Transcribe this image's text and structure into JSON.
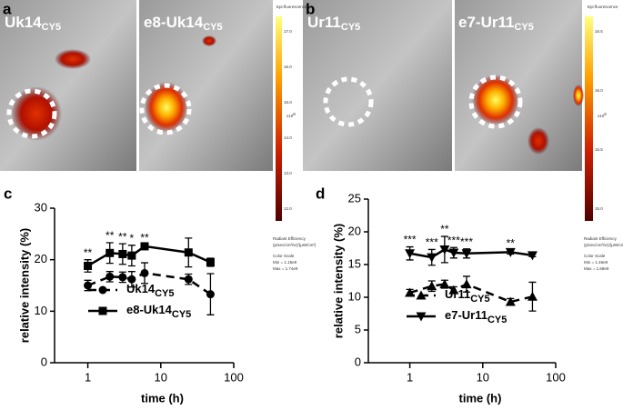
{
  "figure": {
    "panel_labels": [
      "a",
      "b",
      "c",
      "d"
    ],
    "images": [
      {
        "label": "Uk14",
        "subscript": "CY5"
      },
      {
        "label": "e8-Uk14",
        "subscript": "CY5"
      },
      {
        "label": "Ur11",
        "subscript": "CY5"
      },
      {
        "label": "e7-Ur11",
        "subscript": "CY5"
      }
    ],
    "colorbars": [
      {
        "title": "Epi-fluorescence",
        "ticks": [
          "17.0",
          "16.0",
          "15.0",
          "14.0",
          "13.0",
          "12.0"
        ],
        "exponent": "x10",
        "exponent_power": "8",
        "unit_title": "Radiant Efficiency",
        "units": "(p/sec/cm²/sr)/(µW/cm²)",
        "scale_title": "Color Scale",
        "min": "Min = 1.15e9",
        "max": "Max = 1.74e9"
      },
      {
        "title": "Epi-fluorescence",
        "ticks": [
          "16.5",
          "16.0",
          "15.5",
          "15.0"
        ],
        "exponent": "x10",
        "exponent_power": "8",
        "unit_title": "Radiant Efficiency",
        "units": "(p/sec/cm²/sr)/(µW/cm²)",
        "scale_title": "Color Scale",
        "min": "Min = 1.46e9",
        "max": "Max = 1.68e9"
      }
    ]
  },
  "chart_data": [
    {
      "type": "line",
      "x_label": "time (h)",
      "y_label": "relative intensity (%)",
      "log_x": true,
      "x": [
        1,
        2,
        3,
        4,
        6,
        24,
        48
      ],
      "xlim": [
        0.35,
        100
      ],
      "xticks": [
        1,
        10,
        100
      ],
      "ylim": [
        0,
        30
      ],
      "yticks": [
        0,
        10,
        20,
        30
      ],
      "legend": "lower left",
      "series": [
        {
          "name": "Uk14",
          "subscript": "CY5",
          "color": "#000000",
          "marker": "circle",
          "dashed": true,
          "values": [
            15.0,
            16.7,
            16.6,
            16.2,
            17.4,
            16.2,
            13.3
          ],
          "errors": [
            1.0,
            1.0,
            1.0,
            1.5,
            2.0,
            1.0,
            4.0
          ]
        },
        {
          "name": "e8-Uk14",
          "subscript": "CY5",
          "color": "#000000",
          "marker": "square",
          "dashed": false,
          "values": [
            18.8,
            21.3,
            21.1,
            20.8,
            22.6,
            21.4,
            19.5
          ],
          "errors": [
            1.2,
            2.0,
            2.0,
            2.0,
            0.3,
            2.8,
            0.8
          ]
        }
      ],
      "annotations": [
        {
          "x": 1,
          "text": "**"
        },
        {
          "x": 2,
          "text": "**"
        },
        {
          "x": 3,
          "text": "**"
        },
        {
          "x": 4,
          "text": "*"
        },
        {
          "x": 6,
          "text": "**"
        }
      ]
    },
    {
      "type": "line",
      "x_label": "time (h)",
      "y_label": "relative intensity (%)",
      "log_x": true,
      "x": [
        1,
        2,
        3,
        4,
        6,
        24,
        48
      ],
      "xlim": [
        0.27,
        100
      ],
      "xticks": [
        1,
        10,
        100
      ],
      "ylim": [
        0,
        25
      ],
      "yticks": [
        0,
        5,
        10,
        15,
        20,
        25
      ],
      "legend": "lower left",
      "series": [
        {
          "name": "Ur11",
          "subscript": "CY5",
          "color": "#000000",
          "marker": "triangle",
          "dashed": true,
          "values": [
            10.7,
            11.7,
            12.0,
            11.1,
            12.0,
            9.3,
            10.1
          ],
          "errors": [
            0.5,
            0.8,
            0.6,
            0.5,
            1.2,
            0.5,
            2.2
          ]
        },
        {
          "name": "e7-Ur11",
          "subscript": "CY5",
          "color": "#000000",
          "marker": "triangle-down",
          "dashed": false,
          "values": [
            16.7,
            16.1,
            17.3,
            16.8,
            16.7,
            16.9,
            16.4
          ],
          "errors": [
            1.0,
            1.2,
            2.0,
            0.8,
            0.7,
            0.3,
            0.2
          ]
        }
      ],
      "annotations": [
        {
          "x": 1,
          "text": "***"
        },
        {
          "x": 2,
          "text": "***"
        },
        {
          "x": 3,
          "text": "**"
        },
        {
          "x": 4,
          "text": "***"
        },
        {
          "x": 6,
          "text": "***"
        },
        {
          "x": 24,
          "text": "**"
        }
      ]
    }
  ]
}
